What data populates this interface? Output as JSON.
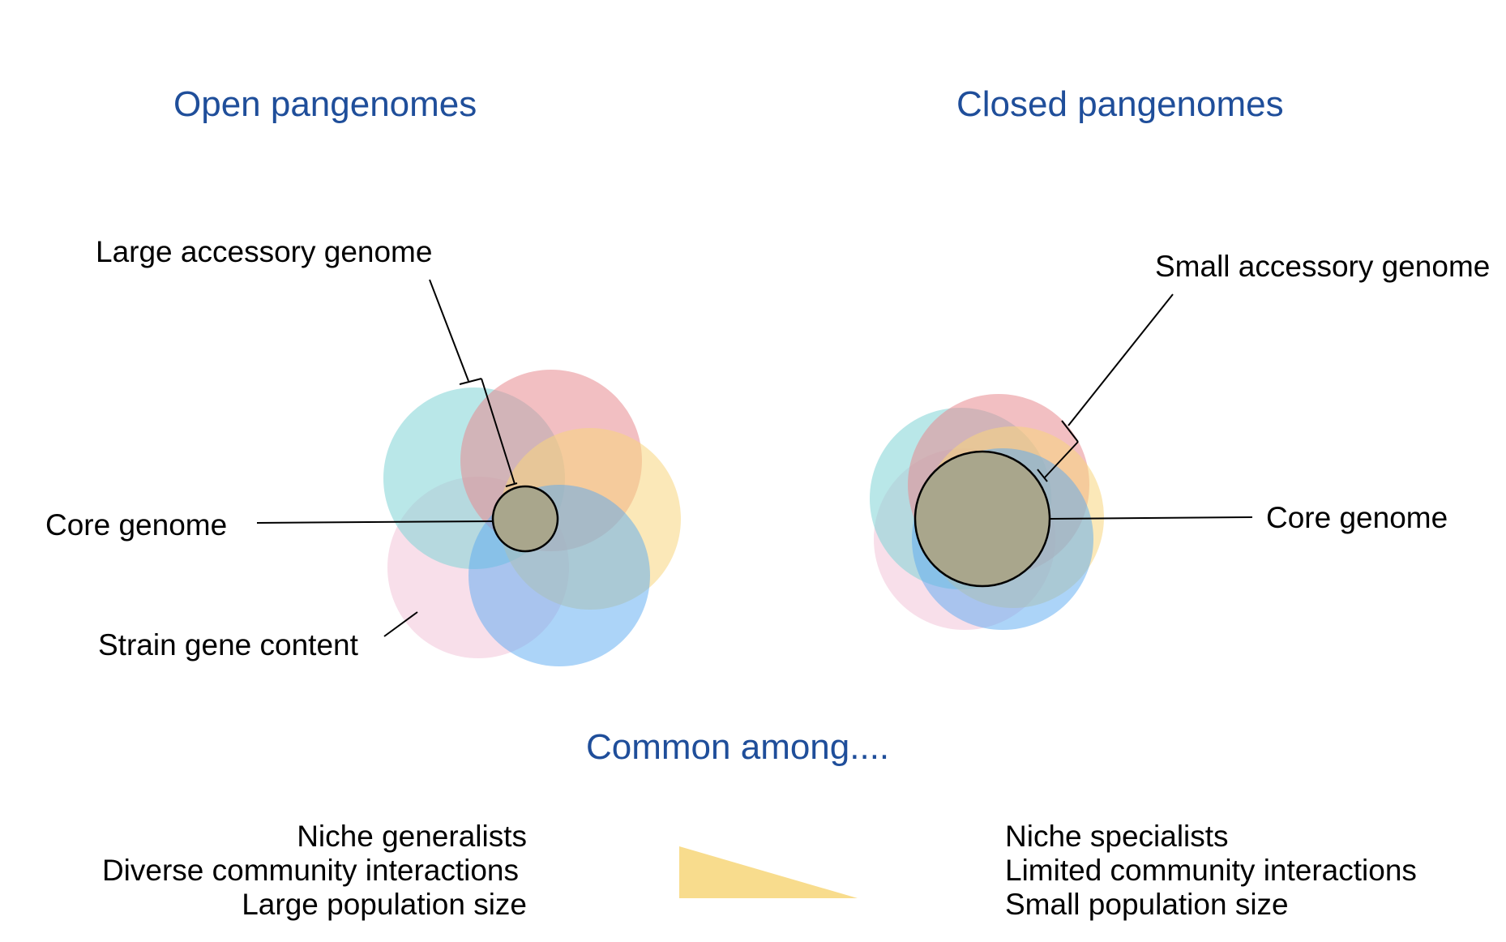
{
  "colors": {
    "heading": "#1f4e9a",
    "teal": "#7fd3d6",
    "red": "#e78b8f",
    "yellow": "#f7d67e",
    "pink": "#f3c4d8",
    "blue": "#5aaaf2",
    "core_fill": "#a9a68c",
    "gradient_triangle": "#f8dc8d"
  },
  "open": {
    "title": "Open pangenomes",
    "accessory_label": "Large accessory genome",
    "core_label": "Core genome",
    "strain_label": "Strain gene content"
  },
  "closed": {
    "title": "Closed pangenomes",
    "accessory_label": "Small accessory genome",
    "core_label": "Core genome"
  },
  "common_among": {
    "title": "Common among....",
    "open_traits": [
      "Niche generalists",
      "Diverse community interactions",
      "Large population size"
    ],
    "closed_traits": [
      "Niche specialists",
      "Limited community interactions",
      "Small population size"
    ]
  }
}
